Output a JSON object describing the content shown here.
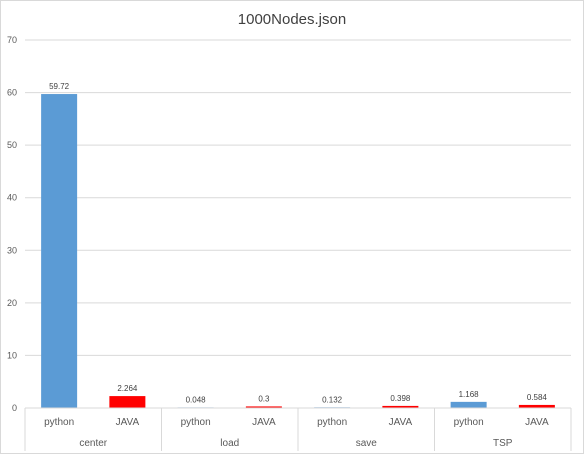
{
  "chart_data": {
    "type": "bar",
    "title": "1000Nodes.json",
    "xlabel": "",
    "ylabel": "",
    "ylim": [
      0,
      70
    ],
    "yticks": [
      0,
      10,
      20,
      30,
      40,
      50,
      60,
      70
    ],
    "grid": true,
    "legend": "none",
    "groups": [
      {
        "name": "center",
        "bars": [
          {
            "label": "python",
            "value": 59.72,
            "value_label": "59.72",
            "color": "#5b9bd5"
          },
          {
            "label": "JAVA",
            "value": 2.264,
            "value_label": "2.264",
            "color": "#ff0000"
          }
        ]
      },
      {
        "name": "load",
        "bars": [
          {
            "label": "python",
            "value": 0.048,
            "value_label": "0.048",
            "color": "#5b9bd5"
          },
          {
            "label": "JAVA",
            "value": 0.3,
            "value_label": "0.3",
            "color": "#ff0000"
          }
        ]
      },
      {
        "name": "save",
        "bars": [
          {
            "label": "python",
            "value": 0.132,
            "value_label": "0.132",
            "color": "#5b9bd5"
          },
          {
            "label": "JAVA",
            "value": 0.398,
            "value_label": "0.398",
            "color": "#ff0000"
          }
        ]
      },
      {
        "name": "TSP",
        "bars": [
          {
            "label": "python",
            "value": 1.168,
            "value_label": "1.168",
            "color": "#5b9bd5"
          },
          {
            "label": "JAVA",
            "value": 0.584,
            "value_label": "0.584",
            "color": "#ff0000"
          }
        ]
      }
    ]
  }
}
